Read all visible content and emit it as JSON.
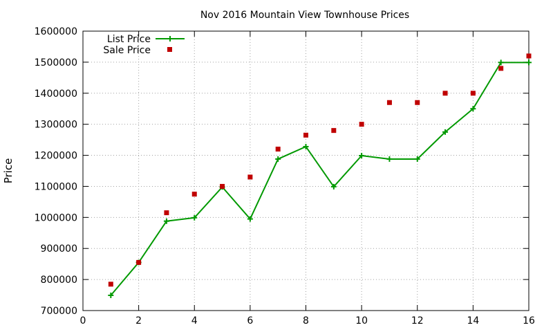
{
  "chart_data": {
    "type": "line",
    "title": "Nov 2016 Mountain View Townhouse Prices",
    "xlabel": "",
    "ylabel": "Price",
    "xlim": [
      0,
      16
    ],
    "ylim": [
      700000,
      1600000
    ],
    "x_ticks": [
      0,
      2,
      4,
      6,
      8,
      10,
      12,
      14,
      16
    ],
    "y_ticks": [
      700000,
      800000,
      900000,
      1000000,
      1100000,
      1200000,
      1300000,
      1400000,
      1500000,
      1600000
    ],
    "grid": true,
    "legend_position": "top-left",
    "x": [
      1,
      2,
      3,
      4,
      5,
      6,
      7,
      8,
      9,
      10,
      11,
      12,
      13,
      14,
      15,
      16
    ],
    "series": [
      {
        "name": "List Price",
        "style": "line-with-plus-markers",
        "color": "#009900",
        "values": [
          749000,
          855000,
          988000,
          999000,
          1098000,
          995000,
          1188000,
          1228000,
          1099000,
          1199000,
          1188000,
          1188000,
          1275000,
          1350000,
          1499000,
          1499000
        ]
      },
      {
        "name": "Sale Price",
        "style": "square-points",
        "color": "#c00000",
        "values": [
          785000,
          855000,
          1015000,
          1075000,
          1100000,
          1130000,
          1220000,
          1265000,
          1280000,
          1300000,
          1370000,
          1370000,
          1400000,
          1400000,
          1480000,
          1520000
        ]
      }
    ]
  }
}
